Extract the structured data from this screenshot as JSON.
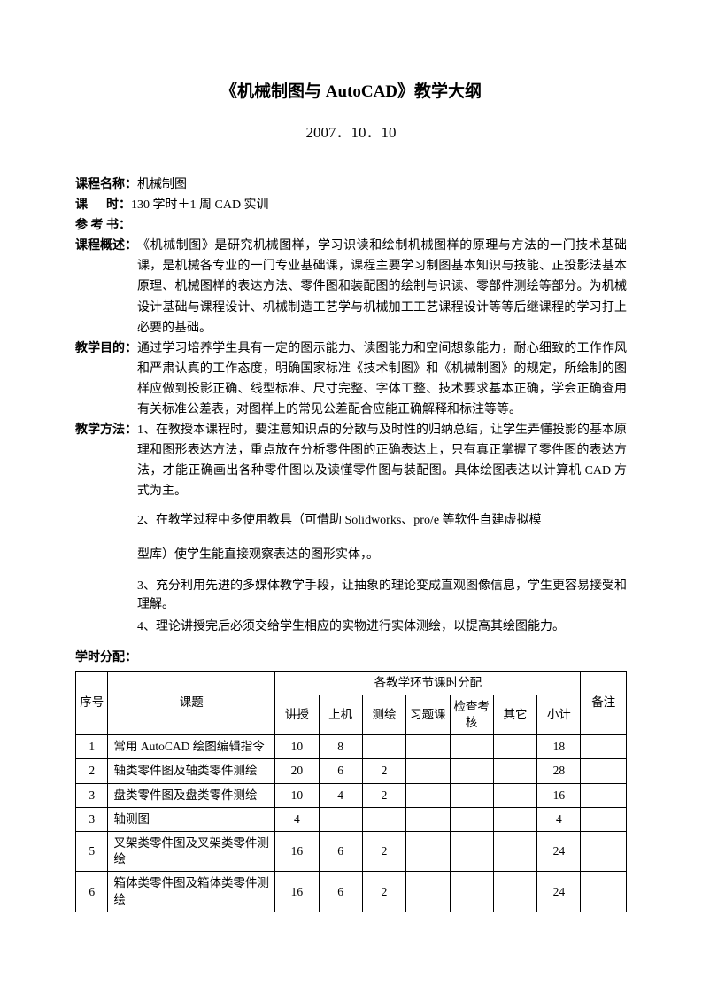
{
  "title": "《机械制图与 AutoCAD》教学大纲",
  "date": "2007．10．10",
  "labels": {
    "course_name": "课程名称：",
    "hours": "课      时：",
    "reference": "参 考 书：",
    "overview": "课程概述：",
    "objective": "教学目的：",
    "method": "教学方法：",
    "allocation": "学时分配："
  },
  "course_name": "机械制图",
  "hours": "130 学时＋1 周 CAD 实训",
  "reference": "",
  "overview": "《机械制图》是研究机械图样，学习识读和绘制机械图样的原理与方法的一门技术基础课，是机械各专业的一门专业基础课，课程主要学习制图基本知识与技能、正投影法基本原理、机械图样的表达方法、零件图和装配图的绘制与识读、零部件测绘等部分。为机械设计基础与课程设计、机械制造工艺学与机械加工工艺课程设计等等后继课程的学习打上必要的基础。",
  "objective": "通过学习培养学生具有一定的图示能力、读图能力和空间想象能力，耐心细致的工作作风和严肃认真的工作态度，明确国家标准《技术制图》和《机械制图》的规定，所绘制的图样应做到投影正确、线型标准、尺寸完整、字体工整、技术要求基本正确，学会正确查用有关标准公差表，对图样上的常见公差配合应能正确解释和标注等等。",
  "method1": "1、在教授本课程时，要注意知识点的分散与及时性的归纳总结，让学生弄懂投影的基本原理和图形表达方法，重点放在分析零件图的正确表达上，只有真正掌握了零件图的表达方法，才能正确画出各种零件图以及读懂零件图与装配图。具体绘图表达以计算机 CAD 方式为主。",
  "method2": "2、在教学过程中多使用教具（可借助 Solidworks、pro/e 等软件自建虚拟模",
  "method2b": "型库）使学生能直接观察表达的图形实体，。",
  "method3": "3、充分利用先进的多媒体教学手段，让抽象的理论变成直观图像信息，学生更容易接受和理解。",
  "method4": "4、理论讲授完后必须交给学生相应的实物进行实体测绘，以提高其绘图能力。",
  "table": {
    "header_group": "各教学环节课时分配",
    "cols": {
      "seq": "序号",
      "topic": "课题",
      "lecture": "讲授",
      "lab": "上机",
      "survey": "测绘",
      "exercise": "习题课",
      "exam": "检查考核",
      "other": "其它",
      "subtotal": "小计",
      "note": "备注"
    },
    "rows": [
      {
        "seq": "1",
        "topic": "常用 AutoCAD 绘图编辑指令",
        "lecture": "10",
        "lab": "8",
        "survey": "",
        "exercise": "",
        "exam": "",
        "other": "",
        "subtotal": "18",
        "note": ""
      },
      {
        "seq": "2",
        "topic": "轴类零件图及轴类零件测绘",
        "lecture": "20",
        "lab": "6",
        "survey": "2",
        "exercise": "",
        "exam": "",
        "other": "",
        "subtotal": "28",
        "note": ""
      },
      {
        "seq": "3",
        "topic": "盘类零件图及盘类零件测绘",
        "lecture": "10",
        "lab": "4",
        "survey": "2",
        "exercise": "",
        "exam": "",
        "other": "",
        "subtotal": "16",
        "note": ""
      },
      {
        "seq": "3",
        "topic": "轴测图",
        "lecture": "4",
        "lab": "",
        "survey": "",
        "exercise": "",
        "exam": "",
        "other": "",
        "subtotal": "4",
        "note": ""
      },
      {
        "seq": "5",
        "topic": "叉架类零件图及叉架类零件测绘",
        "lecture": "16",
        "lab": "6",
        "survey": "2",
        "exercise": "",
        "exam": "",
        "other": "",
        "subtotal": "24",
        "note": ""
      },
      {
        "seq": "6",
        "topic": "箱体类零件图及箱体类零件测绘",
        "lecture": "16",
        "lab": "6",
        "survey": "2",
        "exercise": "",
        "exam": "",
        "other": "",
        "subtotal": "24",
        "note": ""
      }
    ]
  }
}
